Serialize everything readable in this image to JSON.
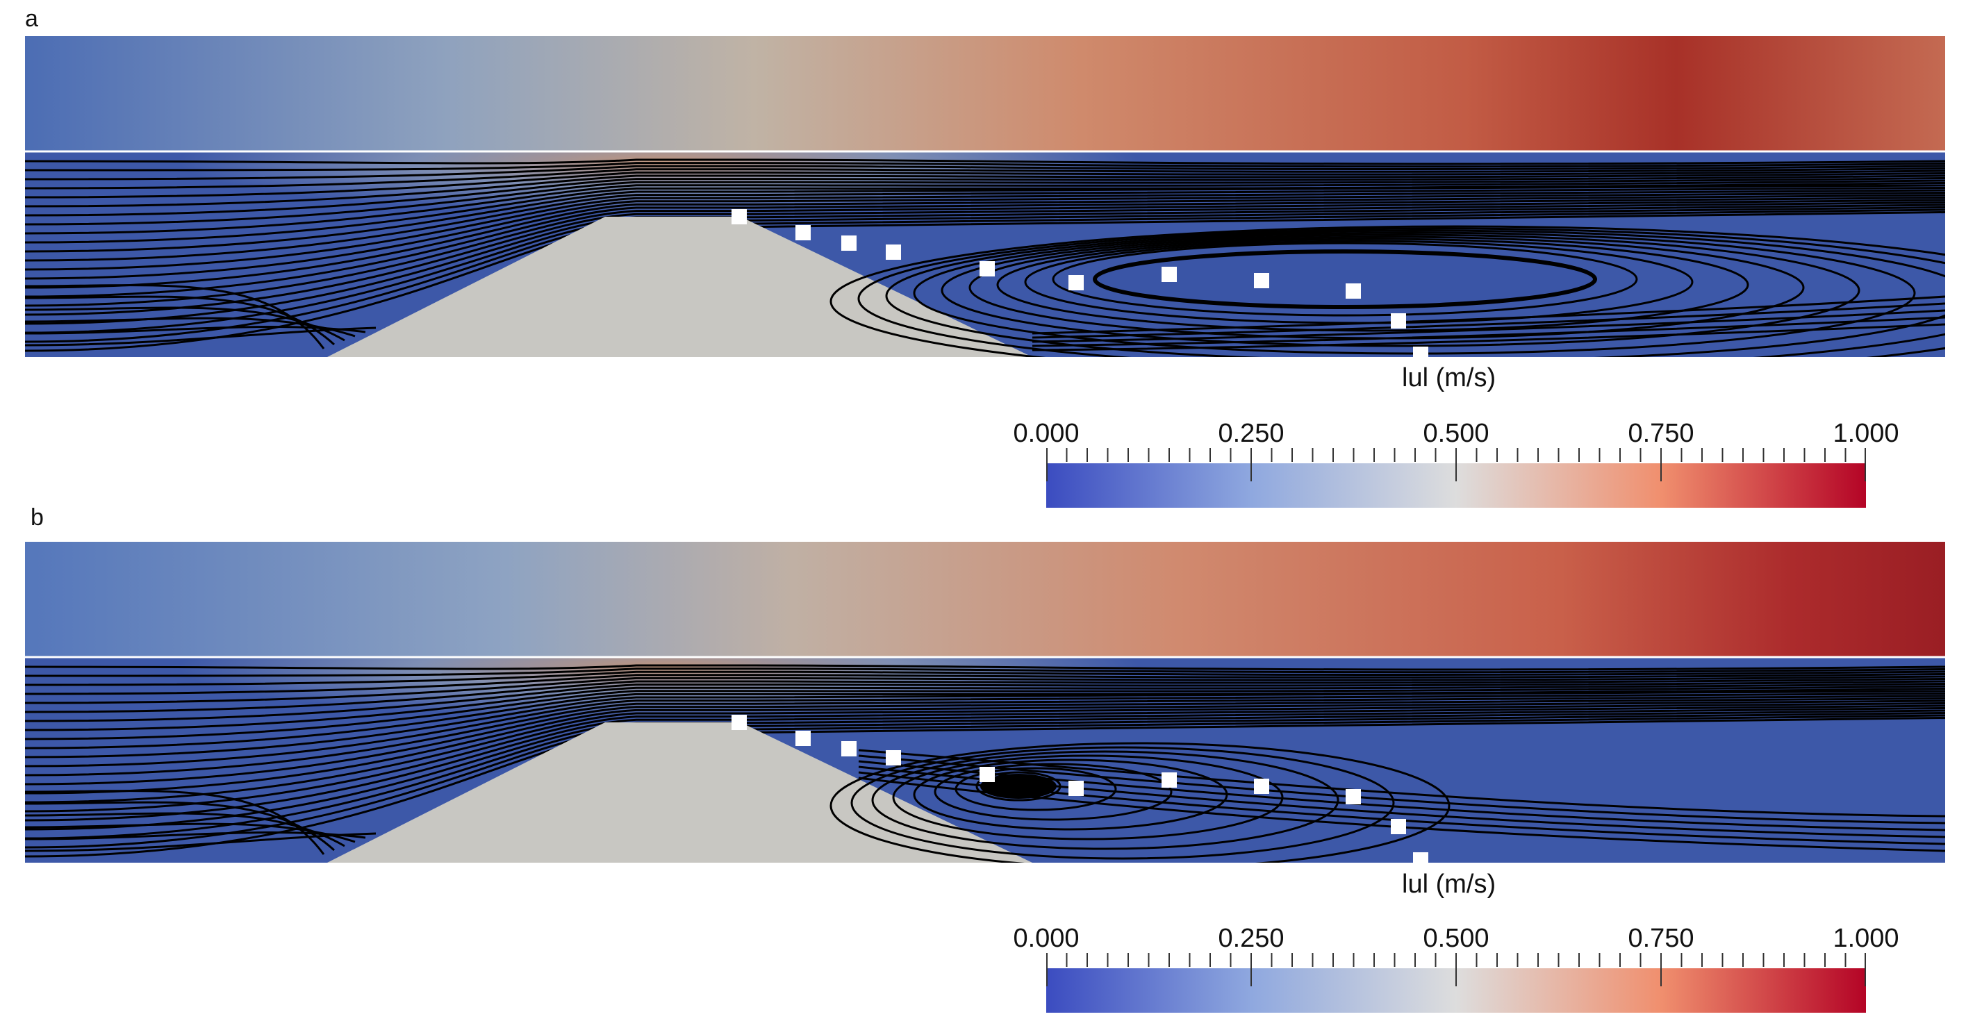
{
  "panels": [
    {
      "label": "a",
      "colorbar": {
        "title": "lul (m/s)",
        "ticks": [
          "0.000",
          "0.250",
          "0.500",
          "0.750",
          "1.000"
        ]
      },
      "vortex": "elongated"
    },
    {
      "label": "b",
      "colorbar": {
        "title": "lul (m/s)",
        "ticks": [
          "0.000",
          "0.250",
          "0.500",
          "0.750",
          "1.000"
        ]
      },
      "vortex": "compact"
    }
  ],
  "colors": {
    "low": "#3b4cc0",
    "mid": "#dddddd",
    "high": "#b40426",
    "obstacle": "#c8c7c2",
    "streamline": "#000000",
    "marker": "#ffffff"
  }
}
